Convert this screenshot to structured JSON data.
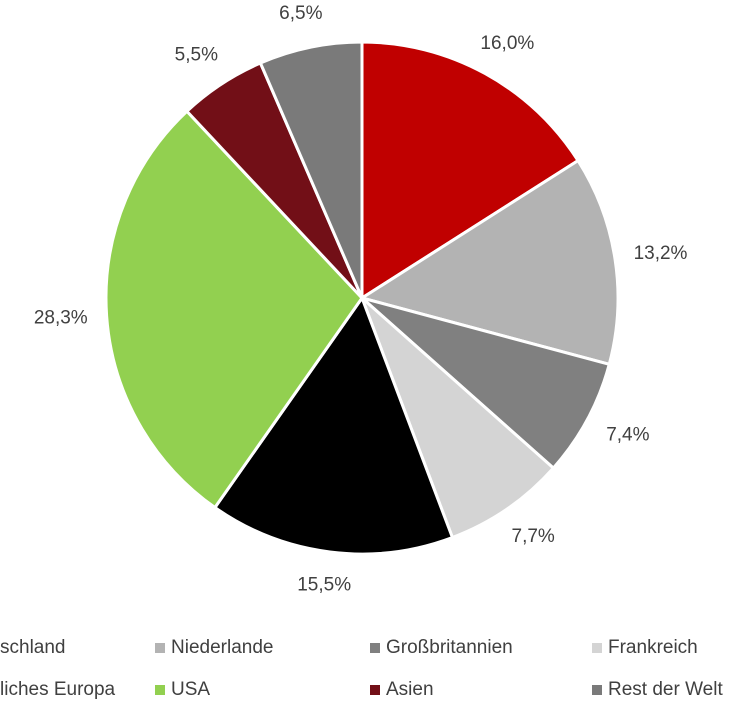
{
  "chart_data": {
    "type": "pie",
    "categories": [
      "schland",
      "Niederlande",
      "Großbritannien",
      "Frankreich",
      "liches Europa",
      "USA",
      "Asien",
      "Rest der Welt"
    ],
    "values": [
      16.0,
      13.2,
      7.4,
      7.7,
      15.5,
      28.3,
      5.5,
      6.5
    ],
    "value_labels": [
      "16,0%",
      "13,2%",
      "7,4%",
      "7,7%",
      "15,5%",
      "28,3%",
      "5,5%",
      "6,5%"
    ],
    "colors": [
      "#c00000",
      "#b3b3b3",
      "#808080",
      "#d4d4d4",
      "#000000",
      "#92d050",
      "#720f17",
      "#7a7a7a"
    ],
    "legend": "bottom"
  }
}
